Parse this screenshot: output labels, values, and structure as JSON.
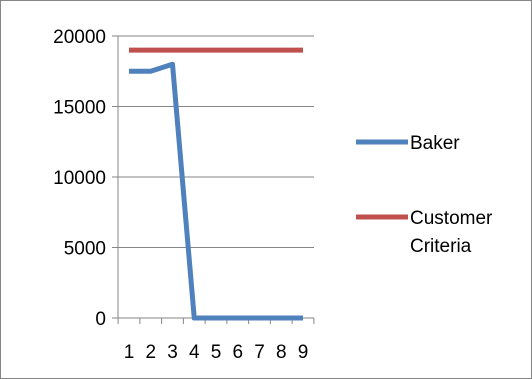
{
  "chart_data": {
    "type": "line",
    "x": [
      1,
      2,
      3,
      4,
      5,
      6,
      7,
      8,
      9
    ],
    "series": [
      {
        "name": "Baker",
        "color": "#4F81BD",
        "values": [
          17500,
          17500,
          18000,
          0,
          0,
          0,
          0,
          0,
          0
        ]
      },
      {
        "name": "Customer Criteria",
        "name_lines": [
          "Customer",
          "Criteria"
        ],
        "color": "#C0504D",
        "values": [
          19000,
          19000,
          19000,
          19000,
          19000,
          19000,
          19000,
          19000,
          19000
        ]
      }
    ],
    "y_ticks": [
      0,
      5000,
      10000,
      15000,
      20000
    ],
    "ylim": [
      0,
      20000
    ],
    "xlim": [
      1,
      9
    ],
    "title": "",
    "xlabel": "",
    "ylabel": "",
    "grid": "horizontal",
    "legend_position": "right"
  }
}
